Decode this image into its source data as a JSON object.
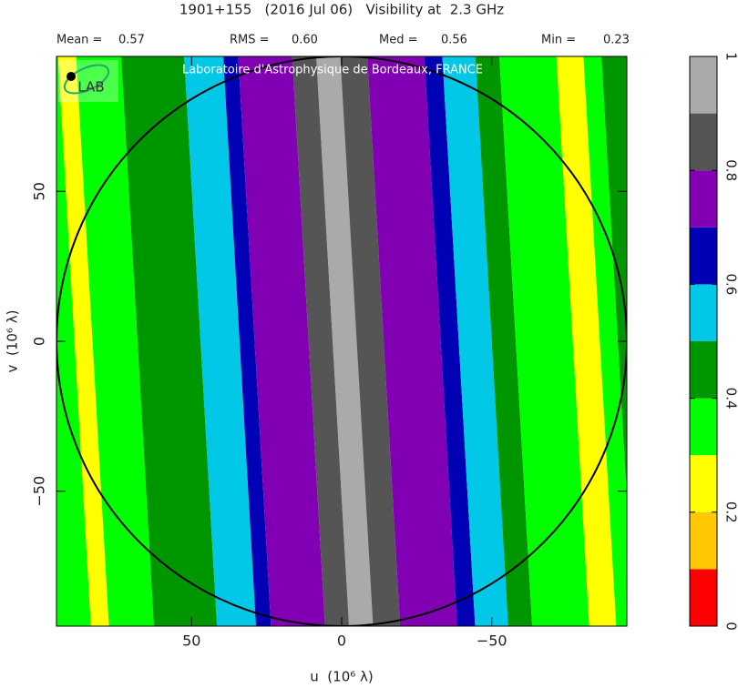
{
  "chart_data": {
    "type": "heatmap",
    "title": "1901+155   (2016 Jul 06)   Visibility at  2.3 GHz",
    "stats": [
      {
        "label": "Mean =",
        "value": "0.57"
      },
      {
        "label": "RMS =",
        "value": "0.60"
      },
      {
        "label": "Med =",
        "value": "0.56"
      },
      {
        "label": "Min =",
        "value": "0.23"
      }
    ],
    "watermark": "Laboratoire d'Astrophysique de Bordeaux, FRANCE",
    "logo": "LAB",
    "x_label": "u  (10⁶ λ)",
    "y_label": "v  (10⁶ λ)",
    "xlim": [
      95,
      -95
    ],
    "ylim": [
      -95,
      95
    ],
    "xticks": [
      50,
      0,
      {
        "value": -50,
        "label": "−50"
      }
    ],
    "yticks": [
      {
        "value": -50,
        "label": "−50"
      },
      0,
      50
    ],
    "stripes": {
      "u": [
        95,
        89,
        83,
        68,
        47,
        34,
        29,
        11,
        3,
        -5,
        -14,
        -33,
        -39,
        -50,
        -58,
        -77,
        -86,
        -92,
        -95
      ],
      "values": [
        0.35,
        0.25,
        0.35,
        0.45,
        0.55,
        0.65,
        0.75,
        0.85,
        0.95,
        0.85,
        0.75,
        0.65,
        0.55,
        0.45,
        0.35,
        0.25,
        0.35,
        0.45
      ]
    },
    "colorbar": {
      "clim": [
        0,
        1
      ],
      "ticks": [
        0,
        0.2,
        0.4,
        0.6,
        0.8,
        1
      ],
      "colors": [
        "#ff0000",
        "#ffc800",
        "#ffff00",
        "#00ff00",
        "#009600",
        "#00c8e6",
        "#0000b4",
        "#8200b4",
        "#555555",
        "#aaaaaa"
      ]
    }
  }
}
